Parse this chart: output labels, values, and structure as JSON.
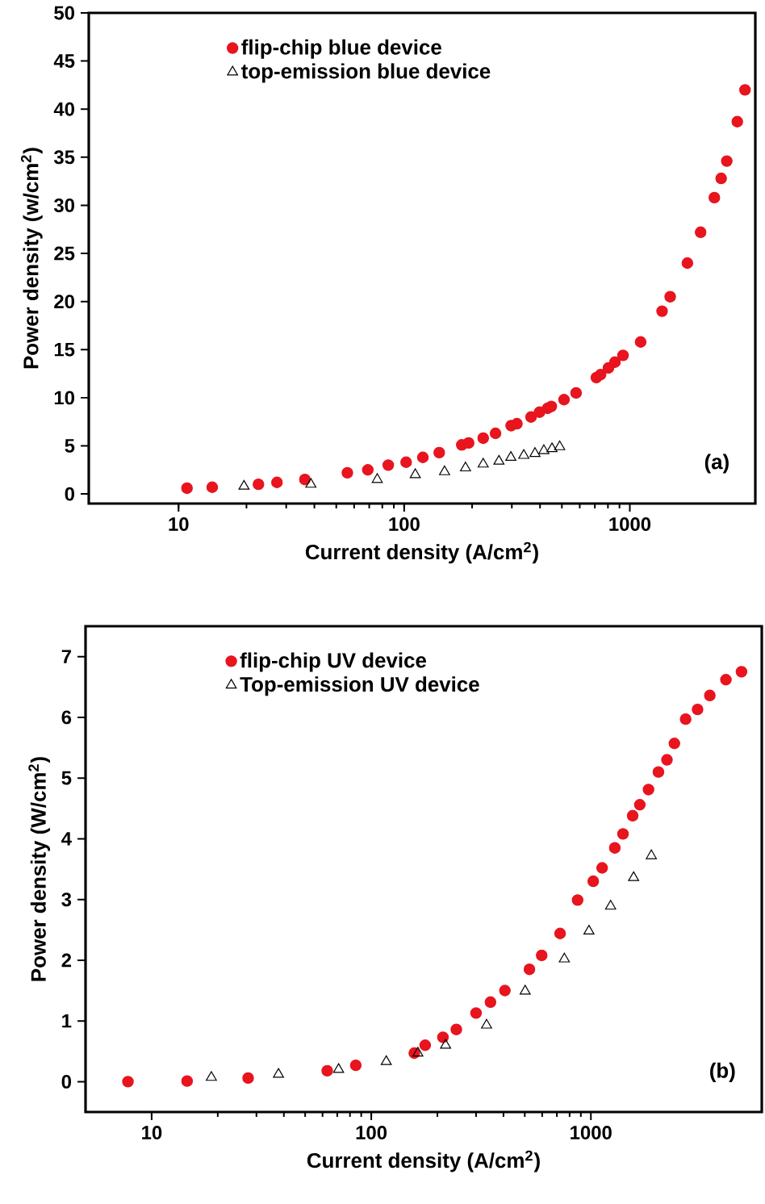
{
  "chart_data": [
    {
      "type": "scatter",
      "xlabel": "Current density (A/cm$^{2}$)",
      "ylabel": "Power density (w/cm$^{2}$)",
      "annotations": [
        "(a)"
      ],
      "log": "x",
      "legend": "top left",
      "xlim": [
        4,
        3600
      ],
      "ylim": [
        -1,
        50
      ],
      "xticks": [
        10,
        100,
        1000
      ],
      "yticks": [
        0,
        5,
        10,
        15,
        20,
        25,
        30,
        35,
        40,
        45,
        50
      ],
      "series": [
        {
          "name": "flip-chip blue device",
          "color": "#e8141e",
          "marker": "circle",
          "x": [
            10.9,
            14.1,
            22.6,
            27.3,
            36.3,
            56,
            69,
            85,
            102,
            121,
            143,
            180,
            193,
            224,
            254,
            298,
            316,
            365,
            398,
            432,
            449,
            511,
            578,
            711,
            742,
            804,
            859,
            933,
            1117,
            1390,
            1510,
            1800,
            2060,
            2370,
            2540,
            2690,
            2995,
            3240
          ],
          "values": [
            0.6,
            0.7,
            1.0,
            1.2,
            1.5,
            2.2,
            2.5,
            3.0,
            3.3,
            3.8,
            4.3,
            5.1,
            5.3,
            5.8,
            6.3,
            7.1,
            7.3,
            8.0,
            8.5,
            8.9,
            9.1,
            9.8,
            10.5,
            12.1,
            12.4,
            13.1,
            13.7,
            14.4,
            15.8,
            19.0,
            20.5,
            24.0,
            27.2,
            30.8,
            32.8,
            34.6,
            38.7,
            42.0
          ]
        },
        {
          "name": "top-emission blue device",
          "color": "#000000",
          "marker": "triangle",
          "x": [
            19.5,
            38.6,
            76,
            112,
            151,
            187,
            224,
            263,
            297,
            339,
            380,
            416,
            452,
            489
          ],
          "values": [
            0.8,
            1.0,
            1.5,
            2.0,
            2.3,
            2.7,
            3.1,
            3.4,
            3.8,
            4.0,
            4.2,
            4.5,
            4.7,
            4.9
          ]
        }
      ]
    },
    {
      "type": "scatter",
      "xlabel": "Current density (A/cm$^{2}$)",
      "ylabel": "Power density (W/cm$^{2}$)",
      "annotations": [
        "(b)"
      ],
      "log": "x",
      "legend": "top left",
      "xlim": [
        5,
        6000
      ],
      "ylim": [
        -0.5,
        7.5
      ],
      "xticks": [
        10,
        100,
        1000
      ],
      "yticks": [
        0,
        1,
        2,
        3,
        4,
        5,
        6,
        7
      ],
      "series": [
        {
          "name": "flip-chip UV device",
          "color": "#e8141e",
          "marker": "circle",
          "x": [
            7.8,
            14.5,
            27.5,
            63,
            85,
            157,
            176,
            212,
            244,
            300,
            349,
            406,
            525,
            597,
            724,
            870,
            1025,
            1125,
            1285,
            1400,
            1550,
            1670,
            1830,
            2030,
            2220,
            2400,
            2700,
            3060,
            3480,
            4120,
            4850
          ],
          "values": [
            0.0,
            0.01,
            0.06,
            0.18,
            0.27,
            0.47,
            0.6,
            0.73,
            0.86,
            1.13,
            1.31,
            1.5,
            1.85,
            2.08,
            2.44,
            2.99,
            3.3,
            3.52,
            3.85,
            4.08,
            4.38,
            4.56,
            4.81,
            5.1,
            5.3,
            5.57,
            5.97,
            6.13,
            6.36,
            6.62,
            6.75
          ]
        },
        {
          "name": "Top-emission UV device",
          "color": "#000000",
          "marker": "triangle",
          "x": [
            18.7,
            37.8,
            71,
            117,
            163,
            218,
            335,
            502,
            757,
            980,
            1230,
            1565,
            1885
          ],
          "values": [
            0.07,
            0.12,
            0.2,
            0.33,
            0.47,
            0.6,
            0.93,
            1.49,
            2.02,
            2.48,
            2.89,
            3.36,
            3.72
          ]
        }
      ]
    }
  ]
}
